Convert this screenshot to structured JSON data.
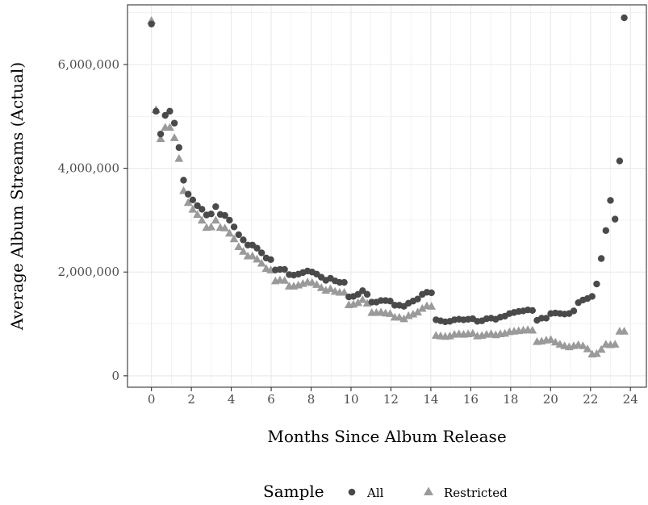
{
  "chart_data": {
    "type": "scatter",
    "title": "",
    "xlabel": "Months Since Album Release",
    "ylabel": "Average Album Streams (Actual)",
    "xlim": [
      -1.2,
      24.8
    ],
    "ylim": [
      -220000,
      7150000
    ],
    "x_ticks": [
      0,
      2,
      4,
      6,
      8,
      10,
      12,
      14,
      16,
      18,
      20,
      22,
      24
    ],
    "x_tick_labels": [
      "0",
      "2",
      "4",
      "6",
      "8",
      "10",
      "12",
      "14",
      "16",
      "18",
      "20",
      "22",
      "24"
    ],
    "y_ticks": [
      0,
      2000000,
      4000000,
      6000000
    ],
    "y_tick_labels": [
      "0",
      "2,000,000",
      "4,000,000",
      "6,000,000"
    ],
    "grid": true,
    "legend": {
      "title": "Sample",
      "position": "bottom",
      "entries": [
        "All",
        "Restricted"
      ]
    },
    "colors": {
      "All": "#4a4a4a",
      "Restricted": "#9a9a9a",
      "panel_border": "#333333",
      "grid": "#ebebeb"
    },
    "series": [
      {
        "name": "All",
        "marker": "circle",
        "x": [
          0,
          0.23,
          0.46,
          0.69,
          0.92,
          1.15,
          1.38,
          1.61,
          1.84,
          2.07,
          2.3,
          2.53,
          2.76,
          2.99,
          3.22,
          3.45,
          3.68,
          3.91,
          4.14,
          4.37,
          4.6,
          4.83,
          5.06,
          5.29,
          5.52,
          5.75,
          5.98,
          6.21,
          6.44,
          6.67,
          6.9,
          7.13,
          7.36,
          7.59,
          7.82,
          8.05,
          8.28,
          8.51,
          8.74,
          8.97,
          9.2,
          9.43,
          9.66,
          9.89,
          10.12,
          10.35,
          10.58,
          10.81,
          11.04,
          11.27,
          11.5,
          11.73,
          11.96,
          12.19,
          12.42,
          12.65,
          12.88,
          13.11,
          13.34,
          13.57,
          13.8,
          14.03,
          14.26,
          14.49,
          14.72,
          14.95,
          15.18,
          15.41,
          15.64,
          15.87,
          16.1,
          16.33,
          16.56,
          16.79,
          17.02,
          17.25,
          17.48,
          17.71,
          17.94,
          18.17,
          18.4,
          18.63,
          18.86,
          19.09,
          19.32,
          19.55,
          19.78,
          20.01,
          20.24,
          20.47,
          20.7,
          20.93,
          21.16,
          21.39,
          21.62,
          21.85,
          22.08,
          22.31,
          22.54,
          22.77,
          23.0,
          23.23,
          23.46,
          23.69
        ],
        "y": [
          6780000,
          5100000,
          4660000,
          5020000,
          5100000,
          4870000,
          4400000,
          3770000,
          3500000,
          3390000,
          3280000,
          3210000,
          3100000,
          3120000,
          3260000,
          3110000,
          3090000,
          3000000,
          2870000,
          2720000,
          2620000,
          2520000,
          2520000,
          2460000,
          2370000,
          2270000,
          2240000,
          2040000,
          2050000,
          2050000,
          1950000,
          1940000,
          1960000,
          1990000,
          2020000,
          2000000,
          1960000,
          1900000,
          1840000,
          1880000,
          1830000,
          1800000,
          1800000,
          1520000,
          1530000,
          1570000,
          1640000,
          1570000,
          1420000,
          1420000,
          1450000,
          1450000,
          1440000,
          1360000,
          1360000,
          1340000,
          1400000,
          1440000,
          1480000,
          1570000,
          1610000,
          1600000,
          1080000,
          1060000,
          1040000,
          1050000,
          1080000,
          1090000,
          1080000,
          1090000,
          1100000,
          1050000,
          1060000,
          1100000,
          1110000,
          1090000,
          1130000,
          1150000,
          1200000,
          1220000,
          1240000,
          1250000,
          1270000,
          1260000,
          1070000,
          1110000,
          1110000,
          1200000,
          1210000,
          1200000,
          1190000,
          1200000,
          1250000,
          1410000,
          1460000,
          1490000,
          1530000,
          1770000,
          2260000,
          2800000,
          3380000,
          3020000,
          4140000,
          6900000
        ]
      },
      {
        "name": "Restricted",
        "marker": "triangle",
        "x": [
          0,
          0.23,
          0.46,
          0.69,
          0.92,
          1.15,
          1.38,
          1.61,
          1.84,
          2.07,
          2.3,
          2.53,
          2.76,
          2.99,
          3.22,
          3.45,
          3.68,
          3.91,
          4.14,
          4.37,
          4.6,
          4.83,
          5.06,
          5.29,
          5.52,
          5.75,
          5.98,
          6.21,
          6.44,
          6.67,
          6.9,
          7.13,
          7.36,
          7.59,
          7.82,
          8.05,
          8.28,
          8.51,
          8.74,
          8.97,
          9.2,
          9.43,
          9.66,
          9.89,
          10.12,
          10.35,
          10.58,
          10.81,
          11.04,
          11.27,
          11.5,
          11.73,
          11.96,
          12.19,
          12.42,
          12.65,
          12.88,
          13.11,
          13.34,
          13.57,
          13.8,
          14.03,
          14.26,
          14.49,
          14.72,
          14.95,
          15.18,
          15.41,
          15.64,
          15.87,
          16.1,
          16.33,
          16.56,
          16.79,
          17.02,
          17.25,
          17.48,
          17.71,
          17.94,
          18.17,
          18.4,
          18.63,
          18.86,
          19.09,
          19.32,
          19.55,
          19.78,
          20.01,
          20.24,
          20.47,
          20.7,
          20.93,
          21.16,
          21.39,
          21.62,
          21.85,
          22.08,
          22.31,
          22.54,
          22.77,
          23.0,
          23.23,
          23.46,
          23.69
        ],
        "y": [
          6840000,
          5120000,
          4560000,
          4780000,
          4780000,
          4580000,
          4180000,
          3560000,
          3330000,
          3200000,
          3100000,
          2990000,
          2850000,
          2860000,
          2990000,
          2850000,
          2840000,
          2740000,
          2630000,
          2480000,
          2390000,
          2300000,
          2300000,
          2240000,
          2160000,
          2060000,
          2030000,
          1820000,
          1840000,
          1830000,
          1720000,
          1720000,
          1740000,
          1770000,
          1800000,
          1790000,
          1750000,
          1690000,
          1640000,
          1670000,
          1620000,
          1600000,
          1600000,
          1360000,
          1370000,
          1400000,
          1460000,
          1390000,
          1210000,
          1210000,
          1220000,
          1200000,
          1190000,
          1120000,
          1120000,
          1090000,
          1150000,
          1180000,
          1220000,
          1290000,
          1340000,
          1330000,
          770000,
          760000,
          750000,
          760000,
          790000,
          800000,
          790000,
          800000,
          810000,
          760000,
          770000,
          790000,
          800000,
          780000,
          800000,
          810000,
          840000,
          850000,
          860000,
          870000,
          880000,
          870000,
          650000,
          660000,
          680000,
          690000,
          640000,
          600000,
          570000,
          550000,
          570000,
          590000,
          570000,
          510000,
          410000,
          420000,
          500000,
          600000,
          590000,
          600000,
          850000,
          850000
        ]
      }
    ]
  }
}
